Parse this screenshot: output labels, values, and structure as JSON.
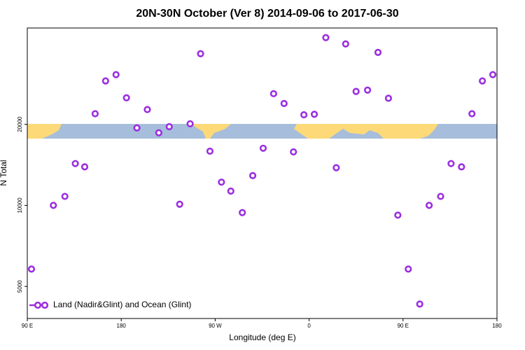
{
  "chart_data": {
    "type": "scatter",
    "title": "20N-30N October (Ver 8)   2014-09-06 to 2017-06-30",
    "x_label": "Longitude (deg E)",
    "y_label": "N Total",
    "xlim": [
      90,
      540
    ],
    "xticks": [
      {
        "value": 90,
        "label": "90 E"
      },
      180,
      {
        "value": 270,
        "label": "90 W"
      },
      {
        "value": 360,
        "label": "0"
      },
      {
        "value": 450,
        "label": "90 E"
      },
      {
        "value": 540,
        "label": "180"
      }
    ],
    "ylim": [
      3800,
      45600
    ],
    "yscale": "log",
    "yticks": [
      5000,
      10000,
      20000
    ],
    "legend": "lower left",
    "series": [
      {
        "name": "Land (Nadir&Glint) and Ocean (Glint)",
        "color": "#9b2fe0",
        "x": [
          94,
          115,
          126,
          136,
          145,
          155,
          165,
          175,
          185,
          195,
          205,
          216,
          226,
          236,
          246,
          256,
          265,
          276,
          285,
          296,
          306,
          316,
          326,
          336,
          345,
          355,
          365,
          376,
          386,
          395,
          405,
          416,
          426,
          436,
          445,
          455,
          466,
          475,
          486,
          496,
          506,
          516,
          526,
          536
        ],
        "values": [
          5800,
          10000,
          10800,
          14300,
          13900,
          21900,
          29000,
          30600,
          25100,
          19400,
          22700,
          18600,
          19600,
          10100,
          20100,
          36600,
          15900,
          12200,
          11300,
          9400,
          12900,
          16300,
          26000,
          23900,
          15800,
          21700,
          21800,
          42000,
          13800,
          39800,
          26500,
          26800,
          37000,
          25000,
          9200,
          5800,
          4300,
          10000,
          10800,
          14300,
          13900,
          21900,
          29000,
          30600
        ]
      }
    ]
  }
}
